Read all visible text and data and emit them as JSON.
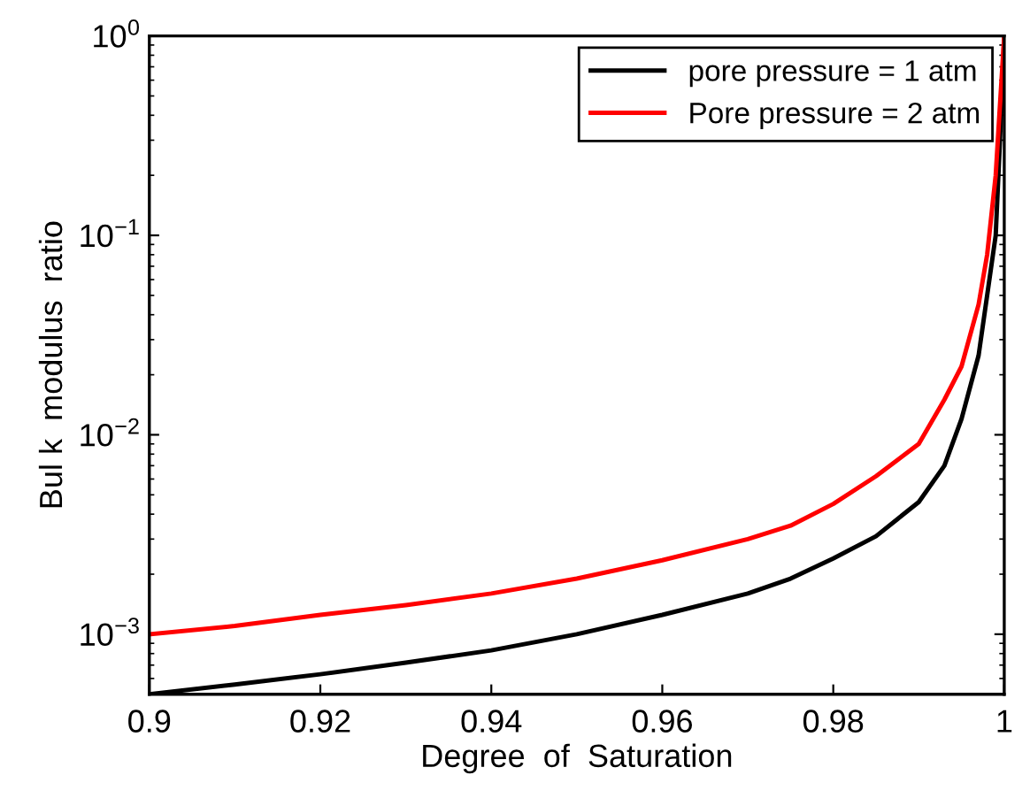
{
  "chart_data": {
    "type": "line",
    "xlabel": "Degree  of  Saturation",
    "ylabel": "Bul k  modulus  ratio",
    "x": [
      0.9,
      0.91,
      0.92,
      0.93,
      0.94,
      0.95,
      0.96,
      0.97,
      0.975,
      0.98,
      0.985,
      0.99,
      0.993,
      0.995,
      0.997,
      0.998,
      0.999,
      0.9995,
      1.0
    ],
    "series": [
      {
        "name": "pore pressure = 1 atm",
        "color": "#000000",
        "values": [
          0.0005,
          0.00056,
          0.00063,
          0.00072,
          0.00083,
          0.001,
          0.00125,
          0.0016,
          0.0019,
          0.0024,
          0.0031,
          0.0046,
          0.007,
          0.012,
          0.025,
          0.05,
          0.1,
          0.3,
          1.0
        ]
      },
      {
        "name": "Pore pressure = 2 atm",
        "color": "#ff0000",
        "values": [
          0.001,
          0.0011,
          0.00125,
          0.0014,
          0.0016,
          0.0019,
          0.00235,
          0.003,
          0.0035,
          0.0045,
          0.0062,
          0.009,
          0.015,
          0.022,
          0.045,
          0.08,
          0.2,
          0.45,
          1.0
        ]
      }
    ],
    "log": "y",
    "xlim": [
      0.9,
      1.0
    ],
    "ylim": [
      0.0005,
      1
    ],
    "xticks": [
      0.9,
      0.92,
      0.94,
      0.96,
      0.98,
      {
        "value": 1.0,
        "label": "1"
      }
    ],
    "yticks": [
      {
        "value": 0.001,
        "label": "10$^{−3}$"
      },
      {
        "value": 0.01,
        "label": "10$^{−2}$"
      },
      {
        "value": 0.1,
        "label": "10$^{−1}$"
      },
      {
        "value": 1,
        "label": "10$^{0}$"
      }
    ],
    "grid": false,
    "legend": "top right",
    "marker": "none",
    "line_style": "solid"
  }
}
